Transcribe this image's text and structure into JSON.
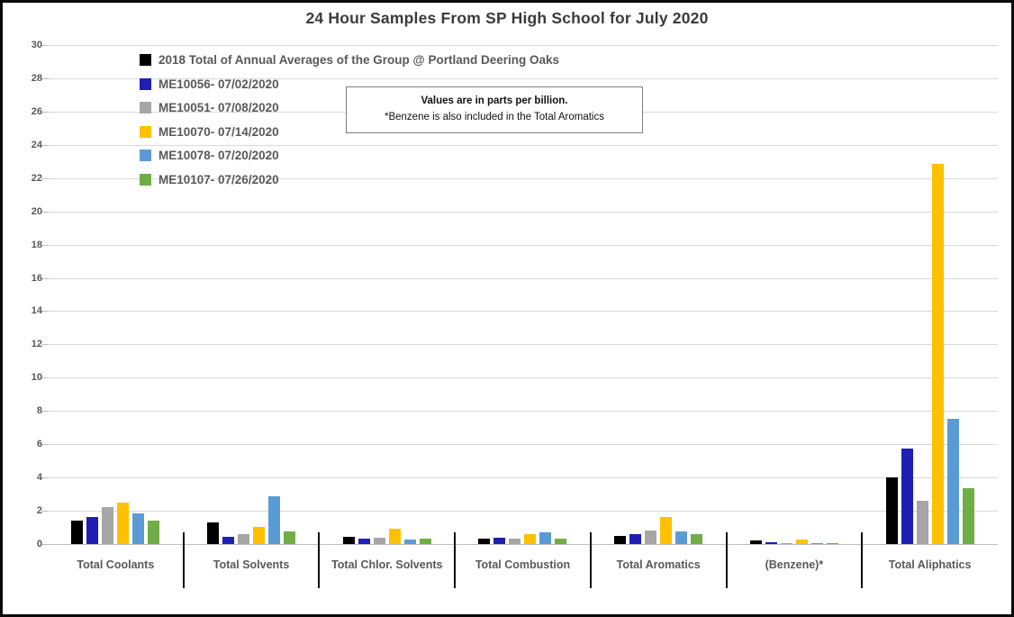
{
  "chart_data": {
    "type": "bar",
    "title": "24 Hour Samples From SP High School for July 2020",
    "ylabel": "",
    "xlabel": "",
    "ylim": [
      0,
      30
    ],
    "ytick_step": 2,
    "yticks": [
      0,
      2,
      4,
      6,
      8,
      10,
      12,
      14,
      16,
      18,
      20,
      22,
      24,
      26,
      28,
      30
    ],
    "grid": true,
    "legend_position": "top-left-inside",
    "units": "parts per billion",
    "categories": [
      "Total Coolants",
      "Total Solvents",
      "Total Chlor. Solvents",
      "Total Combustion",
      "Total Aromatics",
      "(Benzene)*",
      "Total Aliphatics"
    ],
    "series": [
      {
        "name": "2018 Total of Annual Averages of the Group @ Portland Deering Oaks",
        "color": "#000000",
        "values": [
          1.4,
          1.3,
          0.45,
          0.3,
          0.5,
          0.2,
          4.0
        ]
      },
      {
        "name": "ME10056- 07/02/2020",
        "color": "#1f1fb4",
        "values": [
          1.65,
          0.45,
          0.3,
          0.4,
          0.6,
          0.1,
          5.75
        ]
      },
      {
        "name": "ME10051- 07/08/2020",
        "color": "#a6a6a6",
        "values": [
          2.2,
          0.6,
          0.4,
          0.35,
          0.8,
          0.08,
          2.6
        ]
      },
      {
        "name": "ME10070- 07/14/2020",
        "color": "#ffc000",
        "values": [
          2.5,
          1.05,
          0.9,
          0.6,
          1.6,
          0.25,
          22.85
        ]
      },
      {
        "name": "ME10078- 07/20/2020",
        "color": "#5b9bd5",
        "values": [
          1.85,
          2.85,
          0.25,
          0.7,
          0.75,
          0.08,
          7.5
        ]
      },
      {
        "name": "ME10107- 07/26/2020",
        "color": "#70ad47",
        "values": [
          1.4,
          0.75,
          0.3,
          0.35,
          0.6,
          0.06,
          3.35
        ]
      }
    ],
    "annotation": {
      "line1": "Values are in parts per billion.",
      "line2": "*Benzene is also included in the Total Aromatics"
    }
  }
}
